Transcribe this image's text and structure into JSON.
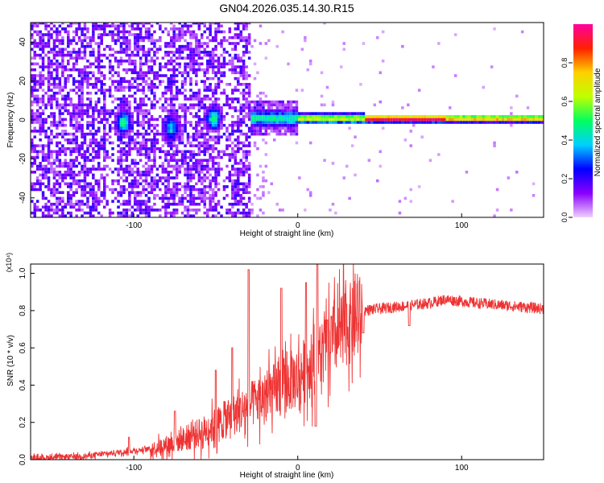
{
  "title": "GN04.2026.035.14.30.R15",
  "chart_data": [
    {
      "type": "heatmap",
      "xlabel": "Height of straight line (km)",
      "ylabel": "Frequency (Hz)",
      "xlim": [
        -163,
        150
      ],
      "ylim": [
        -50,
        50
      ],
      "xticks": [
        -100,
        0,
        100
      ],
      "yticks": [
        -40,
        -20,
        0,
        20,
        40
      ],
      "colorbar": {
        "label": "Normalized spectral amplitude",
        "range": [
          0,
          1
        ],
        "ticks": [
          "0.0",
          "0.2",
          "0.4",
          "0.6",
          "0.8"
        ],
        "tick_values": [
          0.0,
          0.2,
          0.4,
          0.6,
          0.8
        ],
        "colors": [
          "#f0d0ff",
          "#8a00ff",
          "#0000ff",
          "#00d0ff",
          "#00ff60",
          "#c0ff00",
          "#ffd000",
          "#ff2000",
          "#ff00a0"
        ]
      },
      "ridge": {
        "frequency_hz": 0,
        "segments": [
          {
            "x_from": -110,
            "x_to": -30,
            "band_hz": 45,
            "level": 0.12,
            "note": "scattered"
          },
          {
            "x_from": -30,
            "x_to": 0,
            "band_hz": 5,
            "level": 0.4
          },
          {
            "x_from": 0,
            "x_to": 40,
            "band_hz": 3,
            "level": 0.6
          },
          {
            "x_from": 40,
            "x_to": 90,
            "band_hz": 2,
            "level": 0.95
          },
          {
            "x_from": 90,
            "x_to": 150,
            "band_hz": 2,
            "level": 0.75
          }
        ],
        "hotspots": [
          {
            "x": -107,
            "y": -2,
            "level": 0.45
          },
          {
            "x": -78,
            "y": -5,
            "level": 0.35
          },
          {
            "x": -52,
            "y": 0,
            "level": 0.45
          }
        ]
      }
    },
    {
      "type": "line",
      "xlabel": "Height of straight line (km)",
      "ylabel": "SNR (10 * v/v)",
      "y_multiplier": "(x10⁴)",
      "xlim": [
        -163,
        150
      ],
      "ylim": [
        0,
        1.05
      ],
      "xticks": [
        -100,
        0,
        100
      ],
      "yticks": [
        "0.0",
        "0.2",
        "0.4",
        "0.6",
        "0.8",
        "1.0"
      ],
      "ytick_values": [
        0.0,
        0.2,
        0.4,
        0.6,
        0.8,
        1.0
      ],
      "color": "#ee3333",
      "baseline": [
        {
          "x": -163,
          "y": 0.01
        },
        {
          "x": -130,
          "y": 0.02
        },
        {
          "x": -110,
          "y": 0.04
        },
        {
          "x": -90,
          "y": 0.06
        },
        {
          "x": -75,
          "y": 0.1
        },
        {
          "x": -60,
          "y": 0.15
        },
        {
          "x": -45,
          "y": 0.22
        },
        {
          "x": -30,
          "y": 0.3
        },
        {
          "x": -15,
          "y": 0.38
        },
        {
          "x": 0,
          "y": 0.46
        },
        {
          "x": 10,
          "y": 0.55
        },
        {
          "x": 20,
          "y": 0.65
        },
        {
          "x": 30,
          "y": 0.74
        },
        {
          "x": 40,
          "y": 0.8
        },
        {
          "x": 60,
          "y": 0.82
        },
        {
          "x": 80,
          "y": 0.84
        },
        {
          "x": 90,
          "y": 0.86
        },
        {
          "x": 110,
          "y": 0.84
        },
        {
          "x": 150,
          "y": 0.81
        }
      ],
      "spikes": [
        {
          "x": -103,
          "y": 0.12
        },
        {
          "x": -75,
          "y": 0.26
        },
        {
          "x": -50,
          "y": 0.48
        },
        {
          "x": -40,
          "y": 0.6
        },
        {
          "x": -30,
          "y": 1.02
        },
        {
          "x": -10,
          "y": 0.92
        },
        {
          "x": 5,
          "y": 0.95
        },
        {
          "x": 12,
          "y": 1.05
        },
        {
          "x": 18,
          "y": 0.75
        }
      ],
      "dips": [
        {
          "x": 11,
          "y": 0.18
        },
        {
          "x": 40,
          "y": 0.68
        },
        {
          "x": 68,
          "y": 0.72
        }
      ]
    }
  ]
}
